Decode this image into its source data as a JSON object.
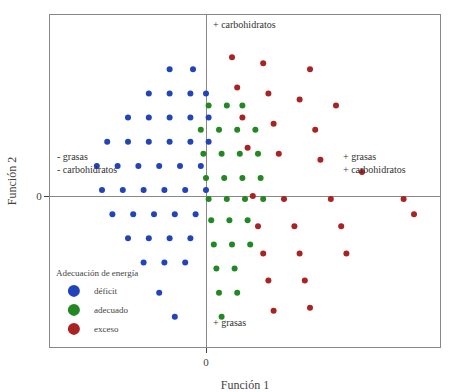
{
  "chart_data": {
    "type": "scatter",
    "xlabel": "Función 1",
    "ylabel": "Función 2",
    "xlim": [
      -3.0,
      4.5
    ],
    "ylim": [
      -2.5,
      3.0
    ],
    "xticks": [
      0
    ],
    "yticks": [
      0
    ],
    "grid": false,
    "legend": "lower left",
    "legend_title": "Adecuación de energía",
    "marker": "circle",
    "annotations": [
      {
        "text": "+ carbohidratos",
        "x": 0.1,
        "y": 2.85
      },
      {
        "text": "+ grasas",
        "x": 0.1,
        "y": -2.1
      },
      {
        "text": "- grasas\n- carbohidratos",
        "x": -2.9,
        "y": 0.55
      },
      {
        "text": "+ grasas\n+ carbohidratos",
        "x": 2.6,
        "y": 0.55
      }
    ],
    "series": [
      {
        "name": "déficit",
        "color": "#2244bb",
        "x": [
          -0.7,
          -0.25,
          -1.1,
          -0.7,
          -0.3,
          0.0,
          -1.5,
          -1.1,
          -0.7,
          -0.3,
          0.05,
          -1.9,
          -1.5,
          -1.1,
          -0.7,
          -0.3,
          0.05,
          -2.1,
          -1.7,
          -1.3,
          -0.9,
          -0.5,
          -0.1,
          -2.0,
          -1.6,
          -1.2,
          -0.8,
          -0.4,
          0.0,
          -1.8,
          -1.4,
          -1.0,
          -0.6,
          -0.2,
          -1.5,
          -1.1,
          -0.7,
          -0.3,
          -1.2,
          -0.8,
          -0.4,
          -0.9,
          -0.6
        ],
        "values": [
          2.1,
          2.1,
          1.7,
          1.7,
          1.7,
          1.7,
          1.3,
          1.3,
          1.3,
          1.3,
          1.3,
          0.9,
          0.9,
          0.9,
          0.9,
          0.9,
          0.9,
          0.5,
          0.5,
          0.5,
          0.5,
          0.5,
          0.5,
          0.1,
          0.1,
          0.1,
          0.1,
          0.1,
          0.1,
          -0.3,
          -0.3,
          -0.3,
          -0.3,
          -0.3,
          -0.7,
          -0.7,
          -0.7,
          -0.7,
          -1.1,
          -1.1,
          -1.1,
          -1.6,
          -2.0
        ]
      },
      {
        "name": "adecuado",
        "color": "#228822",
        "x": [
          0.05,
          0.4,
          0.7,
          -0.1,
          0.25,
          0.6,
          0.95,
          -0.05,
          0.3,
          0.65,
          1.0,
          0.0,
          0.35,
          0.7,
          1.05,
          0.05,
          0.4,
          0.75,
          1.1,
          0.1,
          0.45,
          0.8,
          0.15,
          0.5,
          0.85,
          0.2,
          0.55,
          0.25,
          0.6,
          0.3
        ],
        "values": [
          1.5,
          1.5,
          1.5,
          1.1,
          1.1,
          1.1,
          1.1,
          0.7,
          0.7,
          0.7,
          0.7,
          0.3,
          0.3,
          0.3,
          0.3,
          -0.05,
          -0.05,
          -0.05,
          -0.05,
          -0.4,
          -0.4,
          -0.4,
          -0.8,
          -0.8,
          -0.8,
          -1.2,
          -1.2,
          -1.6,
          -1.6,
          -2.0
        ]
      },
      {
        "name": "exceso",
        "color": "#aa2222",
        "x": [
          0.5,
          1.1,
          2.0,
          0.6,
          1.2,
          1.8,
          2.5,
          0.7,
          1.3,
          2.1,
          0.8,
          1.4,
          2.2,
          3.0,
          0.9,
          1.5,
          2.4,
          3.8,
          1.0,
          1.7,
          2.6,
          1.1,
          1.8,
          2.7,
          1.2,
          1.9,
          1.3,
          2.0,
          4.0
        ],
        "values": [
          2.3,
          2.2,
          2.1,
          1.8,
          1.7,
          1.6,
          1.5,
          1.3,
          1.2,
          1.1,
          0.8,
          0.7,
          0.6,
          0.4,
          0.0,
          -0.05,
          -0.05,
          -0.05,
          -0.5,
          -0.5,
          -0.5,
          -0.95,
          -0.95,
          -0.95,
          -1.4,
          -1.4,
          -1.9,
          -1.85,
          -0.3
        ]
      }
    ]
  }
}
